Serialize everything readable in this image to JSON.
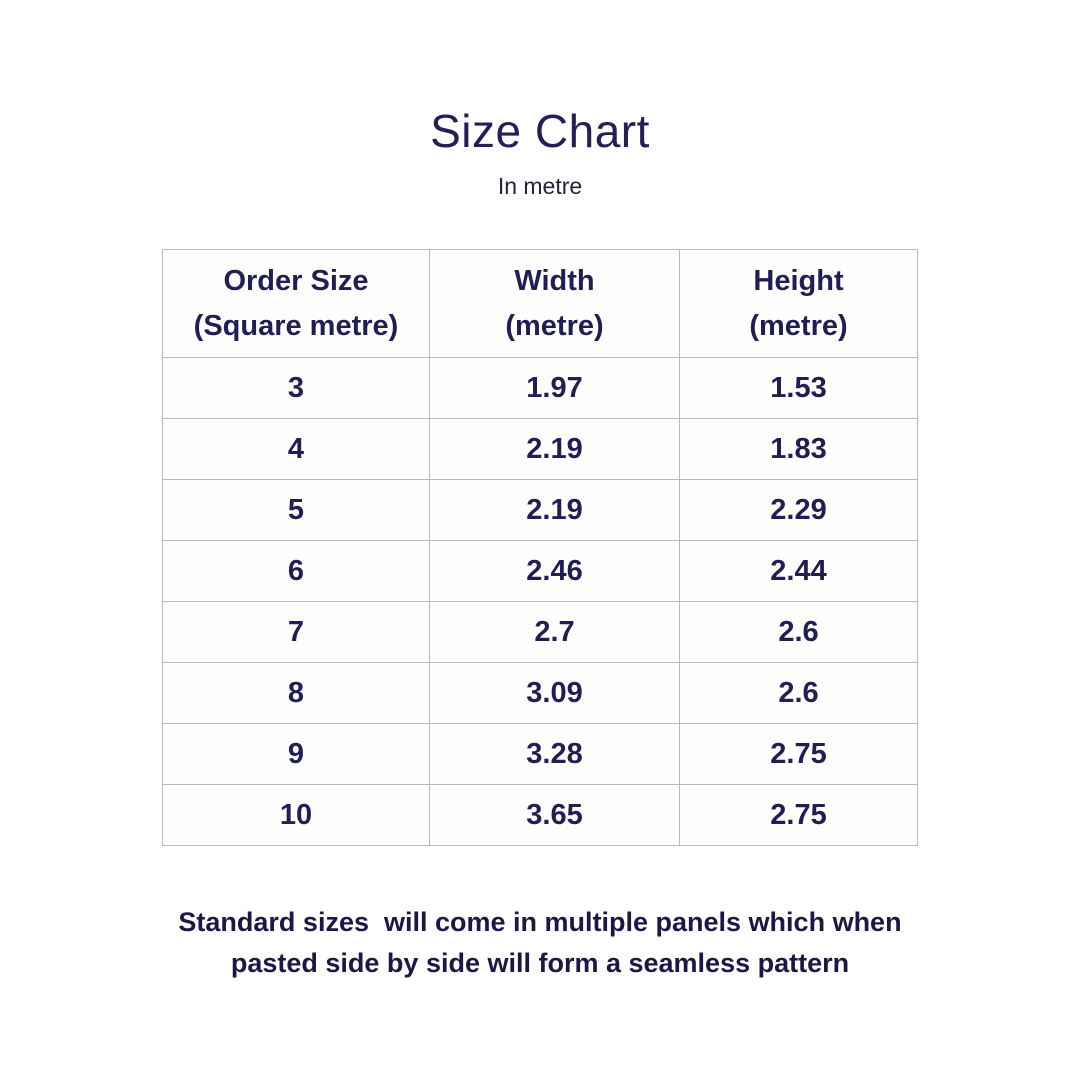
{
  "page": {
    "title": "Size Chart",
    "subtitle": "In metre"
  },
  "colors": {
    "title_text": "#232058",
    "table_text": "#211e55",
    "table_border": "#b9b9b9",
    "footer_text": "#1b1746",
    "background": "#ffffff"
  },
  "table": {
    "headers": [
      {
        "line1": "Order Size",
        "line2": "(Square metre)"
      },
      {
        "line1": "Width",
        "line2": "(metre)"
      },
      {
        "line1": "Height",
        "line2": "(metre)"
      }
    ],
    "rows": [
      [
        "3",
        "1.97",
        "1.53"
      ],
      [
        "4",
        "2.19",
        "1.83"
      ],
      [
        "5",
        "2.19",
        "2.29"
      ],
      [
        "6",
        "2.46",
        "2.44"
      ],
      [
        "7",
        "2.7",
        "2.6"
      ],
      [
        "8",
        "3.09",
        "2.6"
      ],
      [
        "9",
        "3.28",
        "2.75"
      ],
      [
        "10",
        "3.65",
        "2.75"
      ]
    ]
  },
  "footer": {
    "line1": "Standard sizes  will come in multiple panels which when",
    "line2": "pasted side by side will form a seamless pattern"
  },
  "chart_data": {
    "type": "table",
    "title": "Size Chart",
    "subtitle": "In metre",
    "columns": [
      "Order Size (Square metre)",
      "Width (metre)",
      "Height (metre)"
    ],
    "rows": [
      [
        3,
        1.97,
        1.53
      ],
      [
        4,
        2.19,
        1.83
      ],
      [
        5,
        2.19,
        2.29
      ],
      [
        6,
        2.46,
        2.44
      ],
      [
        7,
        2.7,
        2.6
      ],
      [
        8,
        3.09,
        2.6
      ],
      [
        9,
        3.28,
        2.75
      ],
      [
        10,
        3.65,
        2.75
      ]
    ],
    "note": "Standard sizes  will come in multiple panels which when pasted side by side will form a seamless pattern"
  }
}
